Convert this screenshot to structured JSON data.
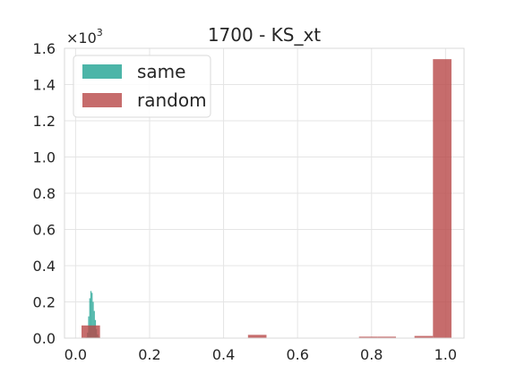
{
  "chart_data": {
    "type": "bar",
    "title": "1700 - KS_xt",
    "xlabel": "",
    "ylabel": "",
    "y_multiplier_label": "×10",
    "y_multiplier_exponent": "3",
    "xlim": [
      -0.03,
      1.05
    ],
    "ylim": [
      0,
      1.6
    ],
    "x_ticks": [
      0.0,
      0.2,
      0.4,
      0.6,
      0.8,
      1.0
    ],
    "x_tick_labels": [
      "0.0",
      "0.2",
      "0.4",
      "0.6",
      "0.8",
      "1.0"
    ],
    "y_ticks": [
      0.0,
      0.2,
      0.4,
      0.6,
      0.8,
      1.0,
      1.2,
      1.4,
      1.6
    ],
    "y_tick_labels": [
      "0.0",
      "0.2",
      "0.4",
      "0.6",
      "0.8",
      "1.0",
      "1.2",
      "1.4",
      "1.6"
    ],
    "grid": true,
    "legend_placement": "top-left",
    "series": [
      {
        "name": "same",
        "color": "#1fa392",
        "bins": [
          {
            "x0": 0.027,
            "x1": 0.031,
            "value": 0.005
          },
          {
            "x0": 0.031,
            "x1": 0.034,
            "value": 0.03
          },
          {
            "x0": 0.034,
            "x1": 0.037,
            "value": 0.12
          },
          {
            "x0": 0.037,
            "x1": 0.04,
            "value": 0.22
          },
          {
            "x0": 0.04,
            "x1": 0.043,
            "value": 0.26
          },
          {
            "x0": 0.043,
            "x1": 0.046,
            "value": 0.25
          },
          {
            "x0": 0.046,
            "x1": 0.049,
            "value": 0.2
          },
          {
            "x0": 0.049,
            "x1": 0.052,
            "value": 0.15
          },
          {
            "x0": 0.052,
            "x1": 0.055,
            "value": 0.1
          },
          {
            "x0": 0.055,
            "x1": 0.058,
            "value": 0.05
          },
          {
            "x0": 0.058,
            "x1": 0.061,
            "value": 0.02
          },
          {
            "x0": 0.061,
            "x1": 0.066,
            "value": 0.006
          }
        ]
      },
      {
        "name": "random",
        "color": "#b84747",
        "bins": [
          {
            "x0": 0.016,
            "x1": 0.066,
            "value": 0.07
          },
          {
            "x0": 0.466,
            "x1": 0.516,
            "value": 0.018
          },
          {
            "x0": 0.766,
            "x1": 0.816,
            "value": 0.008
          },
          {
            "x0": 0.816,
            "x1": 0.866,
            "value": 0.008
          },
          {
            "x0": 0.916,
            "x1": 0.966,
            "value": 0.012
          },
          {
            "x0": 0.966,
            "x1": 1.016,
            "value": 1.54
          }
        ]
      }
    ]
  }
}
